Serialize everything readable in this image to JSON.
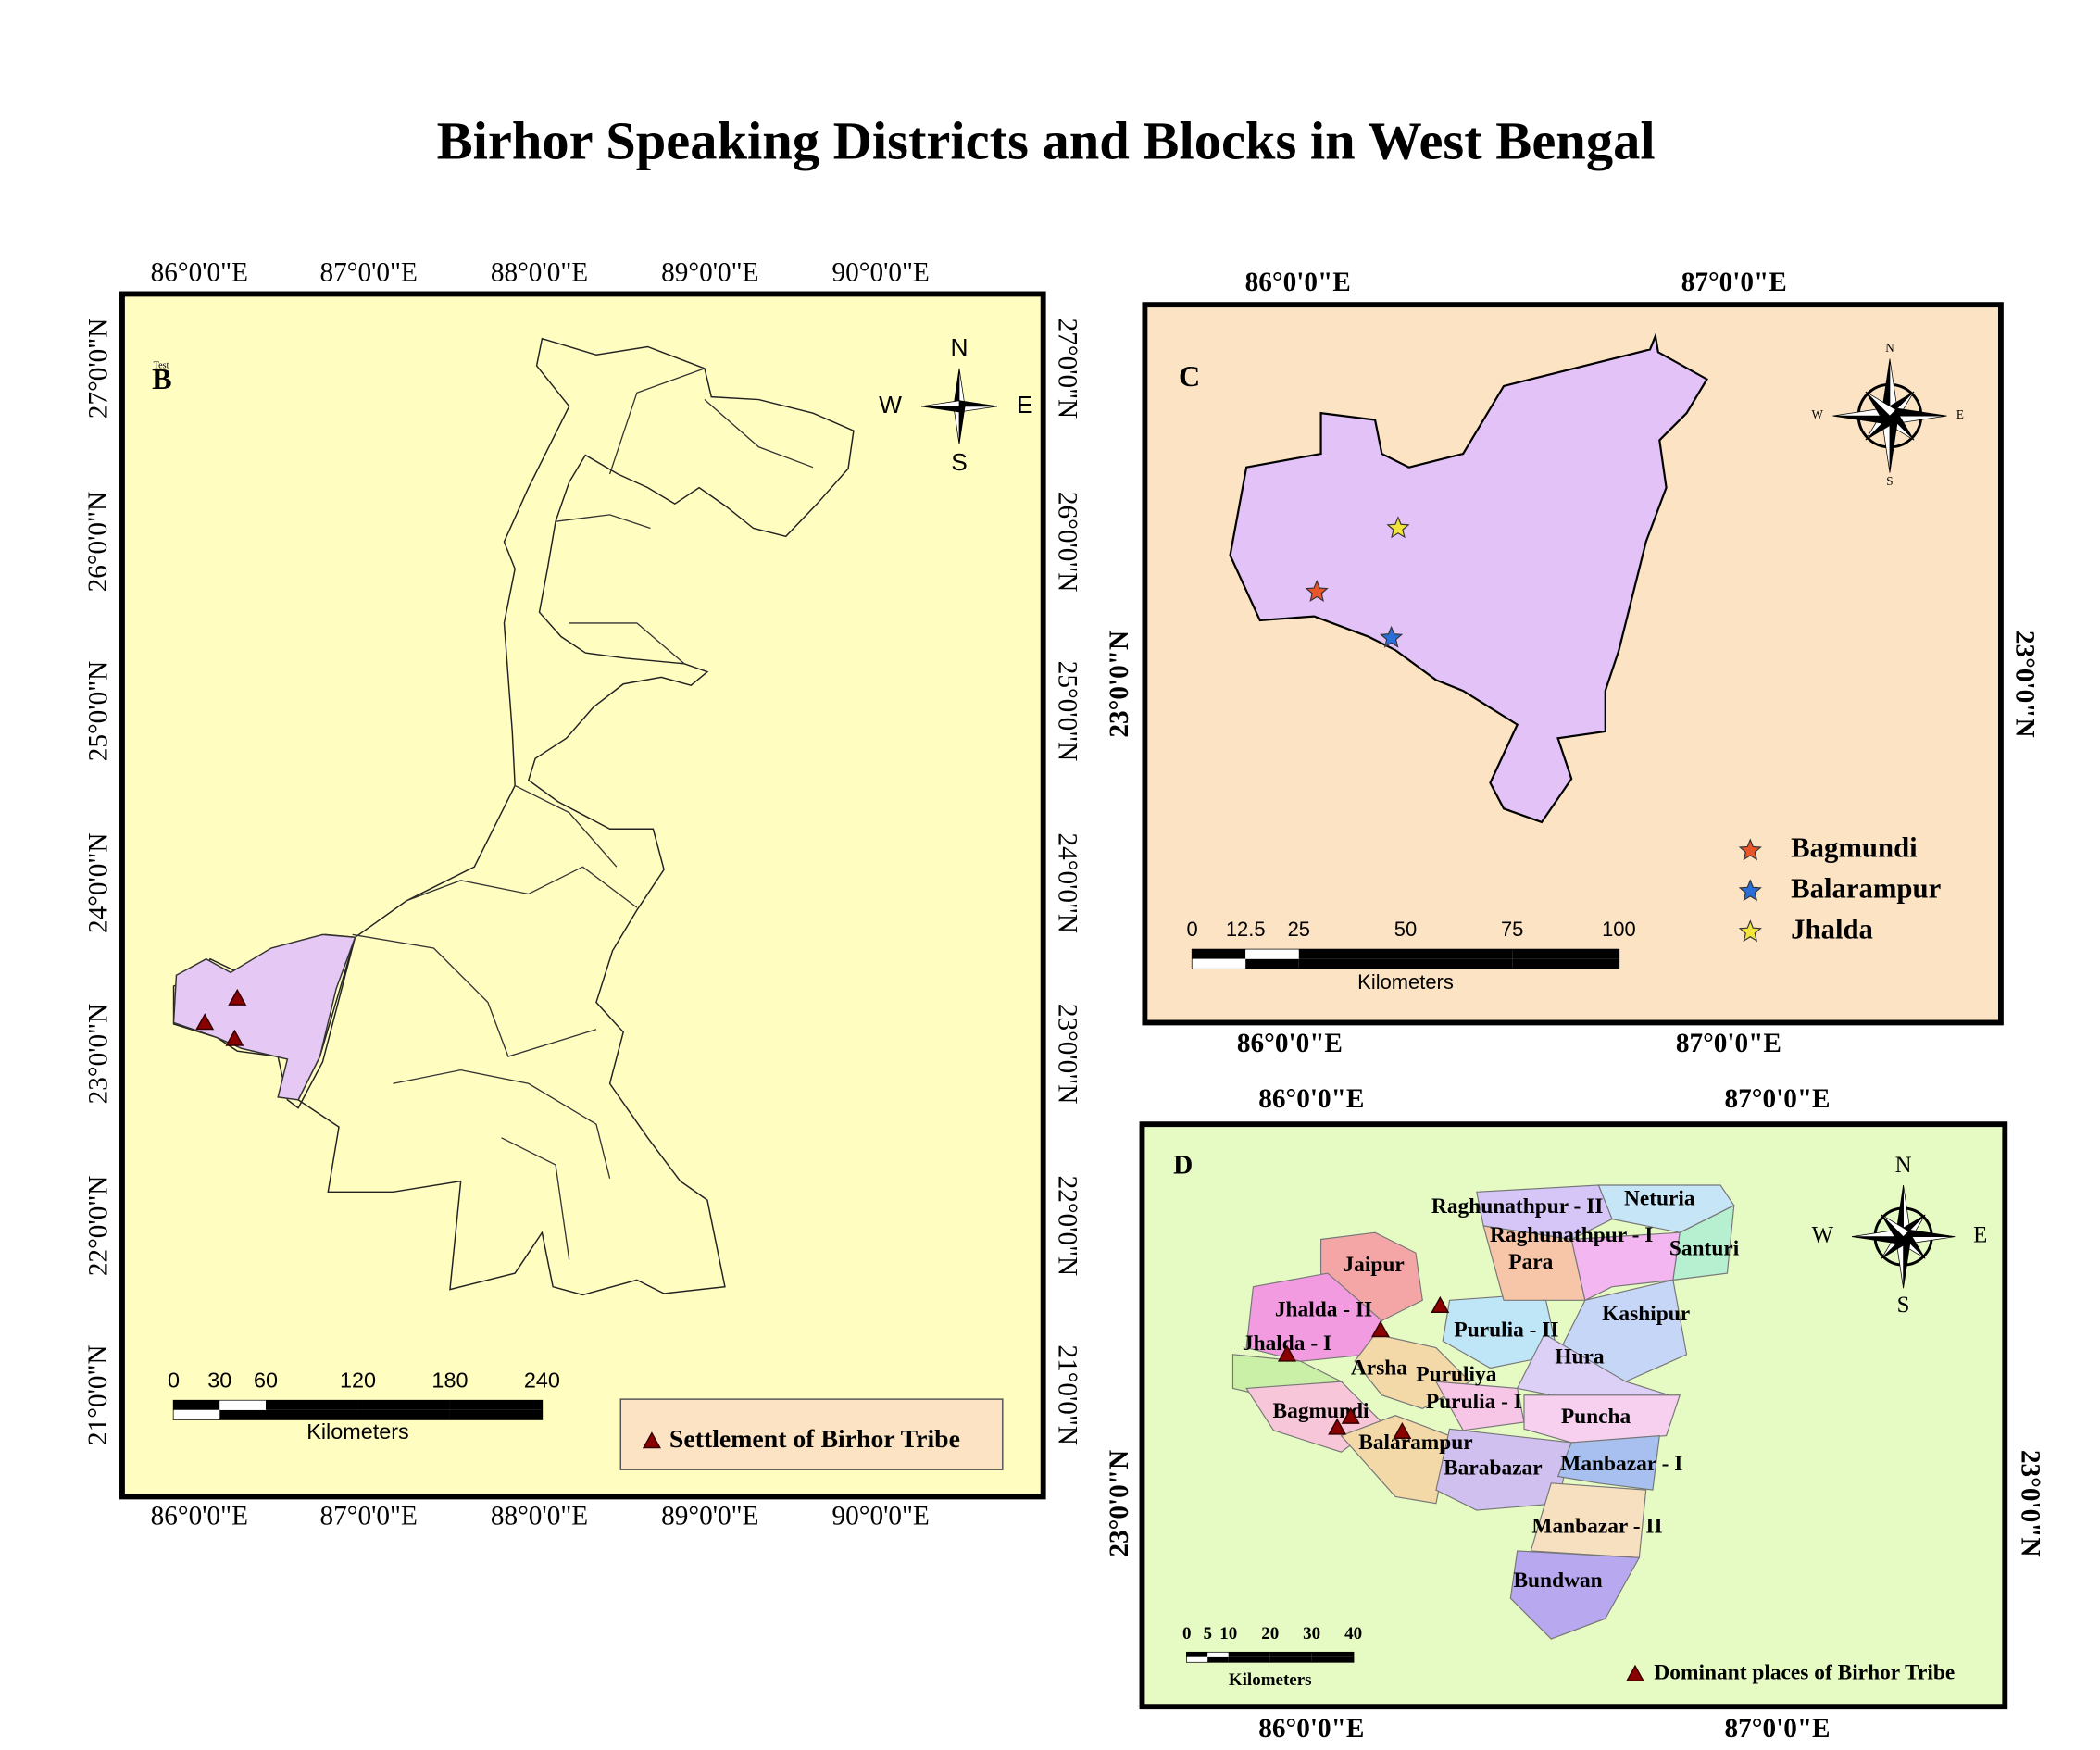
{
  "title": "Birhor Speaking Districts and Blocks in West Bengal",
  "panels": {
    "b": {
      "label": "B",
      "note": "Test",
      "top_labels": [
        "86°0'0\"E",
        "87°0'0\"E",
        "88°0'0\"E",
        "89°0'0\"E",
        "90°0'0\"E"
      ],
      "bottom_labels": [
        "86°0'0\"E",
        "87°0'0\"E",
        "88°0'0\"E",
        "89°0'0\"E",
        "90°0'0\"E"
      ],
      "left_labels": [
        "27°0'0\"N",
        "26°0'0\"N",
        "25°0'0\"N",
        "24°0'0\"N",
        "23°0'0\"N",
        "22°0'0\"N",
        "21°0'0\"N"
      ],
      "right_labels": [
        "27°0'0\"N",
        "26°0'0\"N",
        "25°0'0\"N",
        "24°0'0\"N",
        "23°0'0\"N",
        "22°0'0\"N",
        "21°0'0\"N"
      ],
      "compass": [
        "N",
        "W",
        "E",
        "S"
      ],
      "scale_ticks": [
        0,
        30,
        60,
        120,
        180,
        240
      ],
      "scale_unit": "Kilometers",
      "legend": "Settlement of Birhor Tribe"
    },
    "c": {
      "label": "C",
      "top_labels": [
        "86°0'0\"E",
        "87°0'0\"E"
      ],
      "bottom_labels": [
        "86°0'0\"E",
        "87°0'0\"E"
      ],
      "left_labels": [
        "23°0'0\"N"
      ],
      "right_labels": [
        "23°0'0\"N"
      ],
      "compass": [
        "N",
        "W",
        "E",
        "S"
      ],
      "scale_ticks": [
        0,
        12.5,
        25,
        50,
        75,
        100
      ],
      "scale_unit": "Kilometers",
      "legend": [
        {
          "name": "Bagmundi",
          "color": "#e8552a"
        },
        {
          "name": "Balarampur",
          "color": "#2a6fd8"
        },
        {
          "name": "Jhalda",
          "color": "#f2e43a"
        }
      ]
    },
    "d": {
      "label": "D",
      "top_labels": [
        "86°0'0\"E",
        "87°0'0\"E"
      ],
      "bottom_labels": [
        "86°0'0\"E",
        "87°0'0\"E"
      ],
      "left_labels": [
        "23°0'0\"N"
      ],
      "right_labels": [
        "23°0'0\"N"
      ],
      "compass": [
        "N",
        "W",
        "E",
        "S"
      ],
      "scale_ticks": [
        0,
        5,
        10,
        20,
        30,
        40
      ],
      "scale_unit": "Kilometers",
      "legend": "Dominant places of Birhor Tribe",
      "blocks": [
        "Raghunathpur - II",
        "Neturia",
        "Raghunathpur - I",
        "Santuri",
        "Para",
        "Jaipur",
        "Jhalda - II",
        "Kashipur",
        "Purulia - II",
        "Jhalda - I",
        "Hura",
        "Arsha",
        "Puruliya",
        "Purulia - I",
        "Bagmundi",
        "Puncha",
        "Balarampur",
        "Barabazar",
        "Manbazar - I",
        "Manbazar - II",
        "Bundwan"
      ]
    }
  }
}
